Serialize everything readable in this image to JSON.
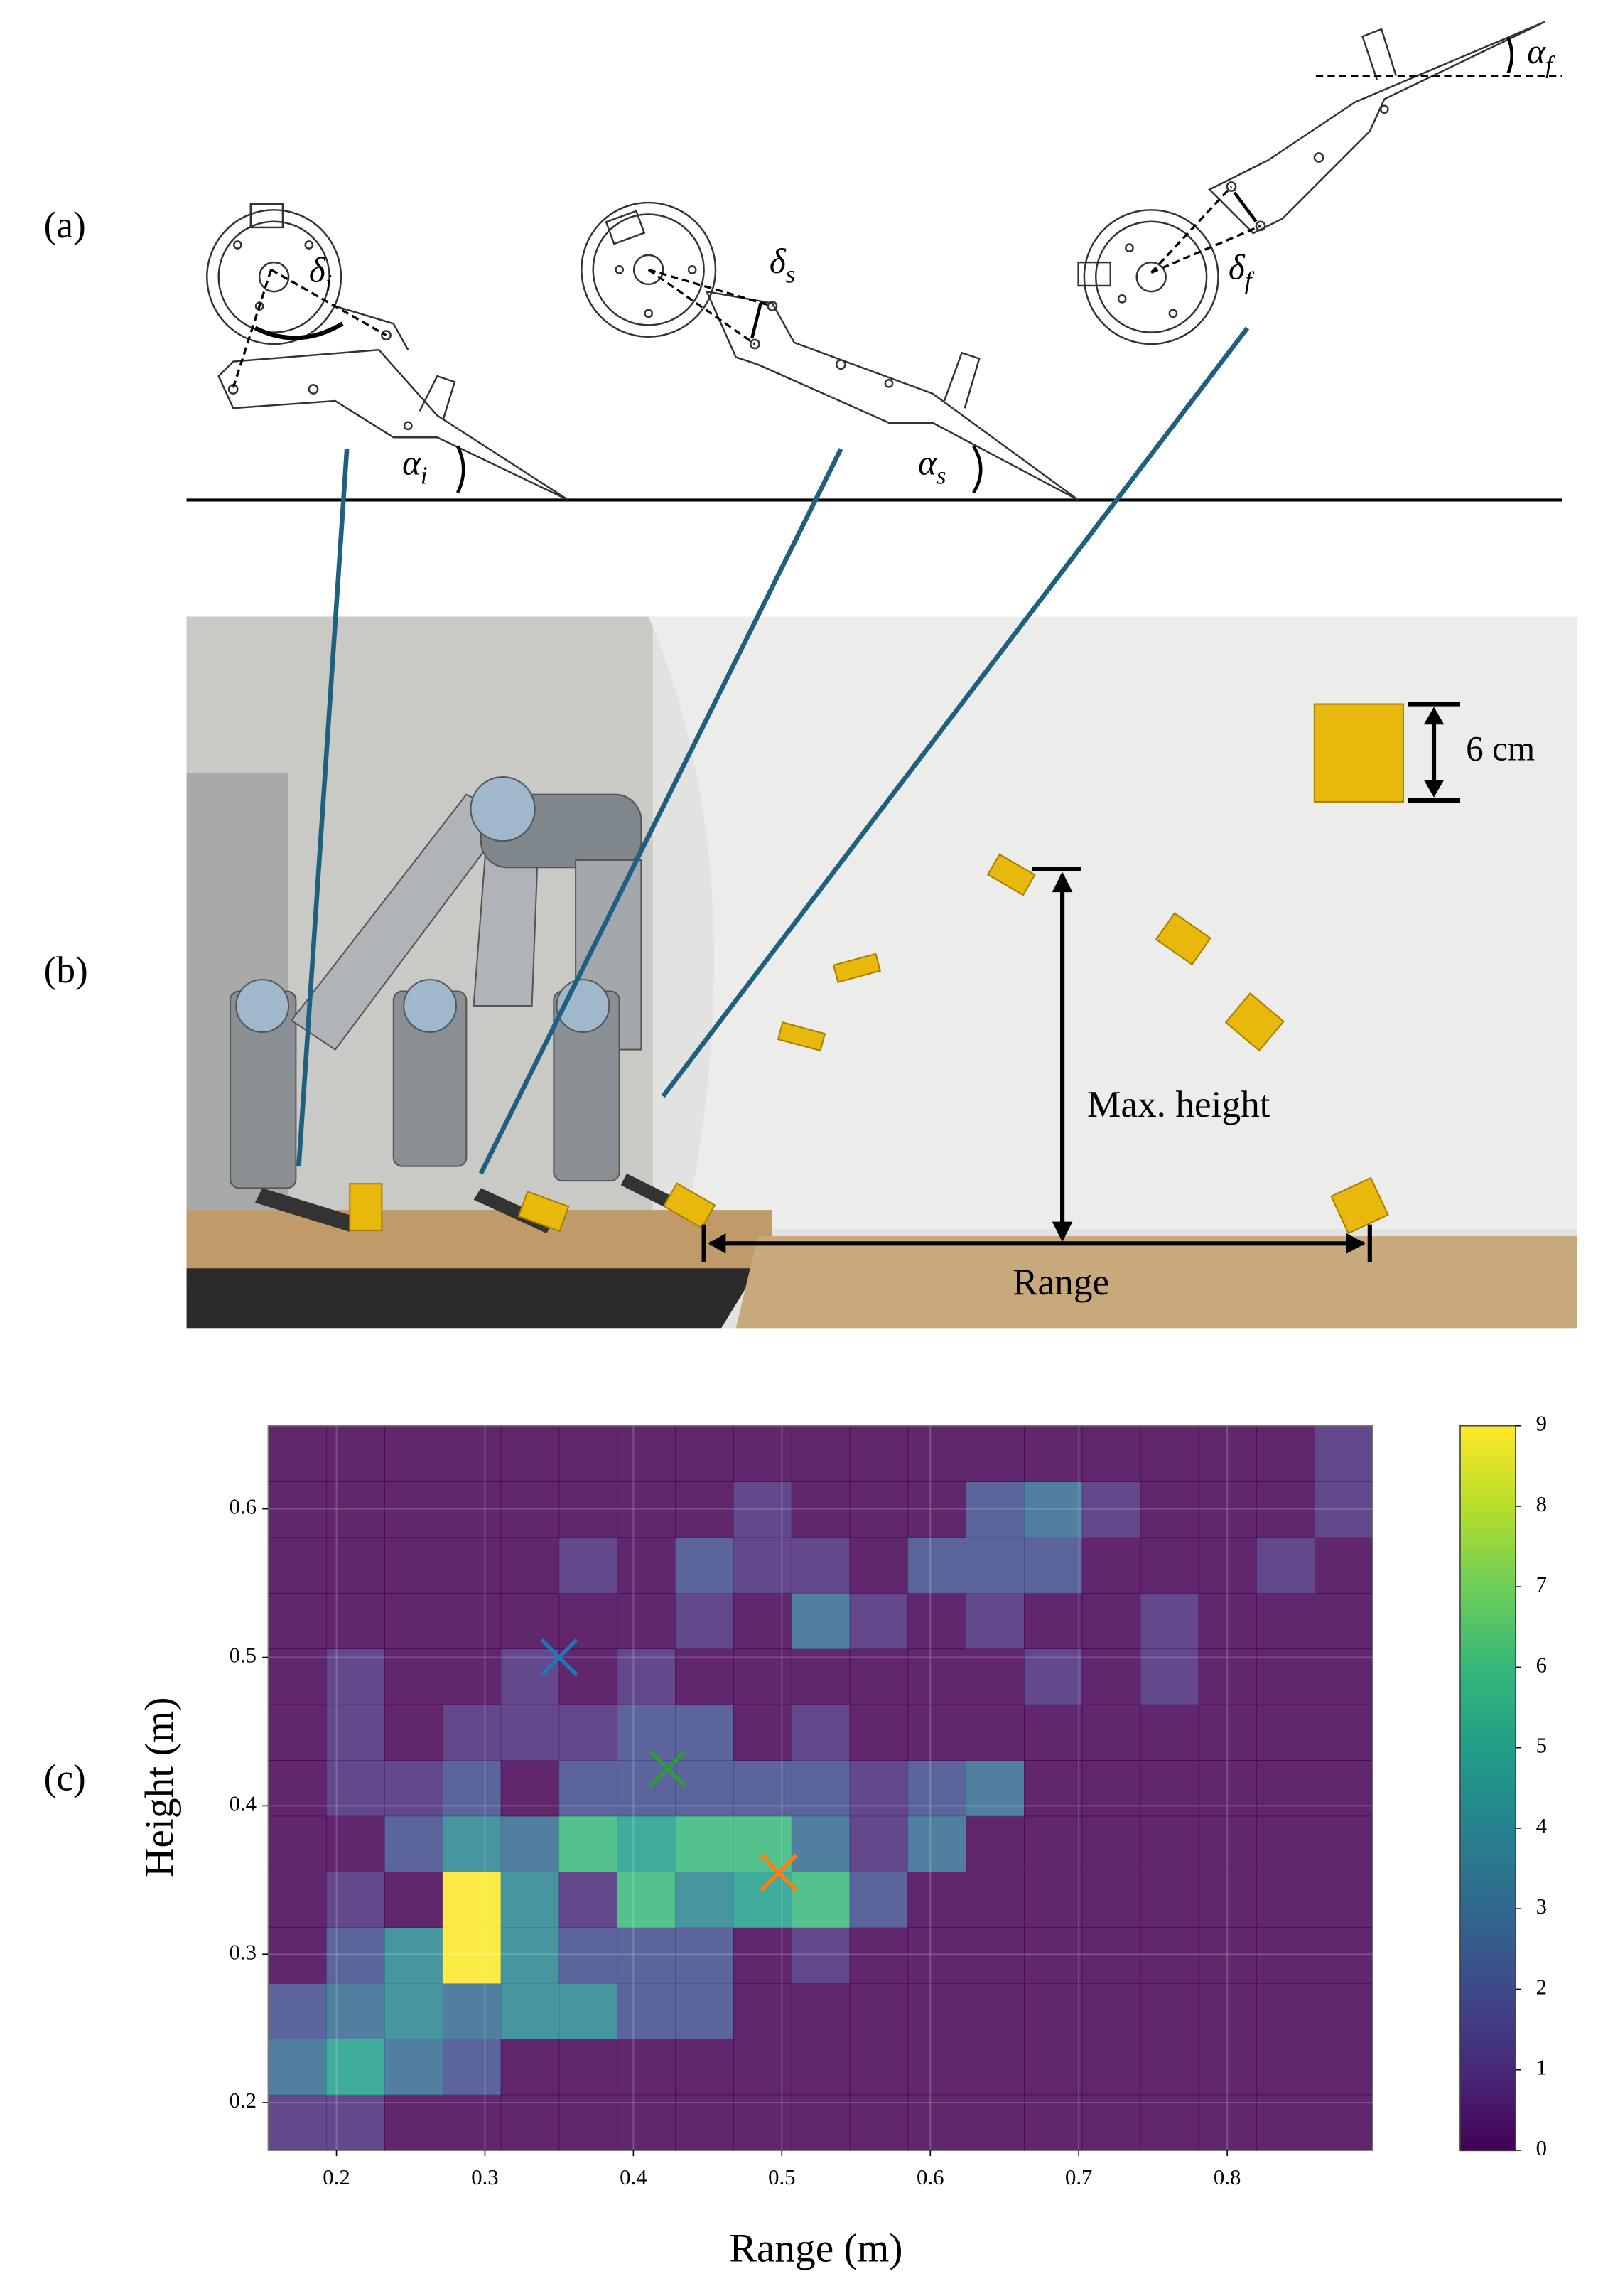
{
  "panels": {
    "a": "(a)",
    "b": "(b)",
    "c": "(c)"
  },
  "diagram": {
    "angles": [
      {
        "symbol": "δ",
        "sub": "i"
      },
      {
        "symbol": "α",
        "sub": "i"
      },
      {
        "symbol": "δ",
        "sub": "s"
      },
      {
        "symbol": "α",
        "sub": "s"
      },
      {
        "symbol": "δ",
        "sub": "f"
      },
      {
        "symbol": "α",
        "sub": "f"
      }
    ]
  },
  "photo": {
    "size_label": "6 cm",
    "height_label": "Max. height",
    "range_label": "Range"
  },
  "chart_data": {
    "type": "heatmap",
    "x_label": "Range (m)",
    "y_label": "Height (m)",
    "xlim": [
      0.154,
      0.898
    ],
    "ylim": [
      0.168,
      0.656
    ],
    "xticks": [
      0.2,
      0.3,
      0.4,
      0.5,
      0.6,
      0.7,
      0.8
    ],
    "yticks": [
      0.2,
      0.3,
      0.4,
      0.5,
      0.6
    ],
    "grid": true,
    "colormap": "viridis",
    "zlim": [
      0,
      9
    ],
    "zticks": [
      0,
      1,
      2,
      3,
      4,
      5,
      6,
      7,
      8,
      9
    ],
    "z": [
      [
        1,
        1,
        0,
        0,
        0,
        0,
        0,
        0,
        0,
        0,
        0,
        0,
        0,
        0,
        0,
        0,
        0,
        0,
        0
      ],
      [
        3,
        5,
        3,
        2,
        0,
        0,
        0,
        0,
        0,
        0,
        0,
        0,
        0,
        0,
        0,
        0,
        0,
        0,
        0
      ],
      [
        2,
        3,
        4,
        3,
        4,
        4,
        2,
        2,
        0,
        0,
        0,
        0,
        0,
        0,
        0,
        0,
        0,
        0,
        0
      ],
      [
        0,
        2,
        4,
        9,
        4,
        2,
        2,
        2,
        0,
        1,
        0,
        0,
        0,
        0,
        0,
        0,
        0,
        0,
        0
      ],
      [
        0,
        1,
        0,
        9,
        4,
        1,
        6,
        4,
        5,
        6,
        2,
        0,
        0,
        0,
        0,
        0,
        0,
        0,
        0
      ],
      [
        0,
        0,
        2,
        4,
        3,
        6,
        5,
        6,
        6,
        3,
        1,
        3,
        0,
        0,
        0,
        0,
        0,
        0,
        0
      ],
      [
        0,
        1,
        1,
        2,
        0,
        2,
        2,
        2,
        2,
        2,
        1,
        2,
        3,
        0,
        0,
        0,
        0,
        0,
        0
      ],
      [
        0,
        1,
        0,
        1,
        1,
        1,
        2,
        2,
        0,
        1,
        0,
        0,
        0,
        0,
        0,
        0,
        0,
        0,
        0
      ],
      [
        0,
        1,
        0,
        0,
        1,
        0,
        1,
        0,
        0,
        0,
        0,
        0,
        0,
        1,
        0,
        1,
        0,
        0,
        0
      ],
      [
        0,
        0,
        0,
        0,
        0,
        0,
        0,
        1,
        0,
        3,
        1,
        0,
        1,
        0,
        0,
        1,
        0,
        0,
        0
      ],
      [
        0,
        0,
        0,
        0,
        0,
        1,
        0,
        2,
        1,
        1,
        0,
        2,
        2,
        2,
        0,
        0,
        0,
        1,
        0
      ],
      [
        0,
        0,
        0,
        0,
        0,
        0,
        0,
        0,
        1,
        0,
        0,
        0,
        2,
        3,
        1,
        0,
        0,
        0,
        1
      ],
      [
        0,
        0,
        0,
        0,
        0,
        0,
        0,
        0,
        0,
        0,
        0,
        0,
        0,
        0,
        0,
        0,
        0,
        0,
        1
      ]
    ],
    "markers": [
      {
        "x": 0.35,
        "y": 0.5,
        "color": "#1f77b4"
      },
      {
        "x": 0.423,
        "y": 0.425,
        "color": "#2ca02c"
      },
      {
        "x": 0.498,
        "y": 0.355,
        "color": "#ff7f0e"
      }
    ]
  }
}
